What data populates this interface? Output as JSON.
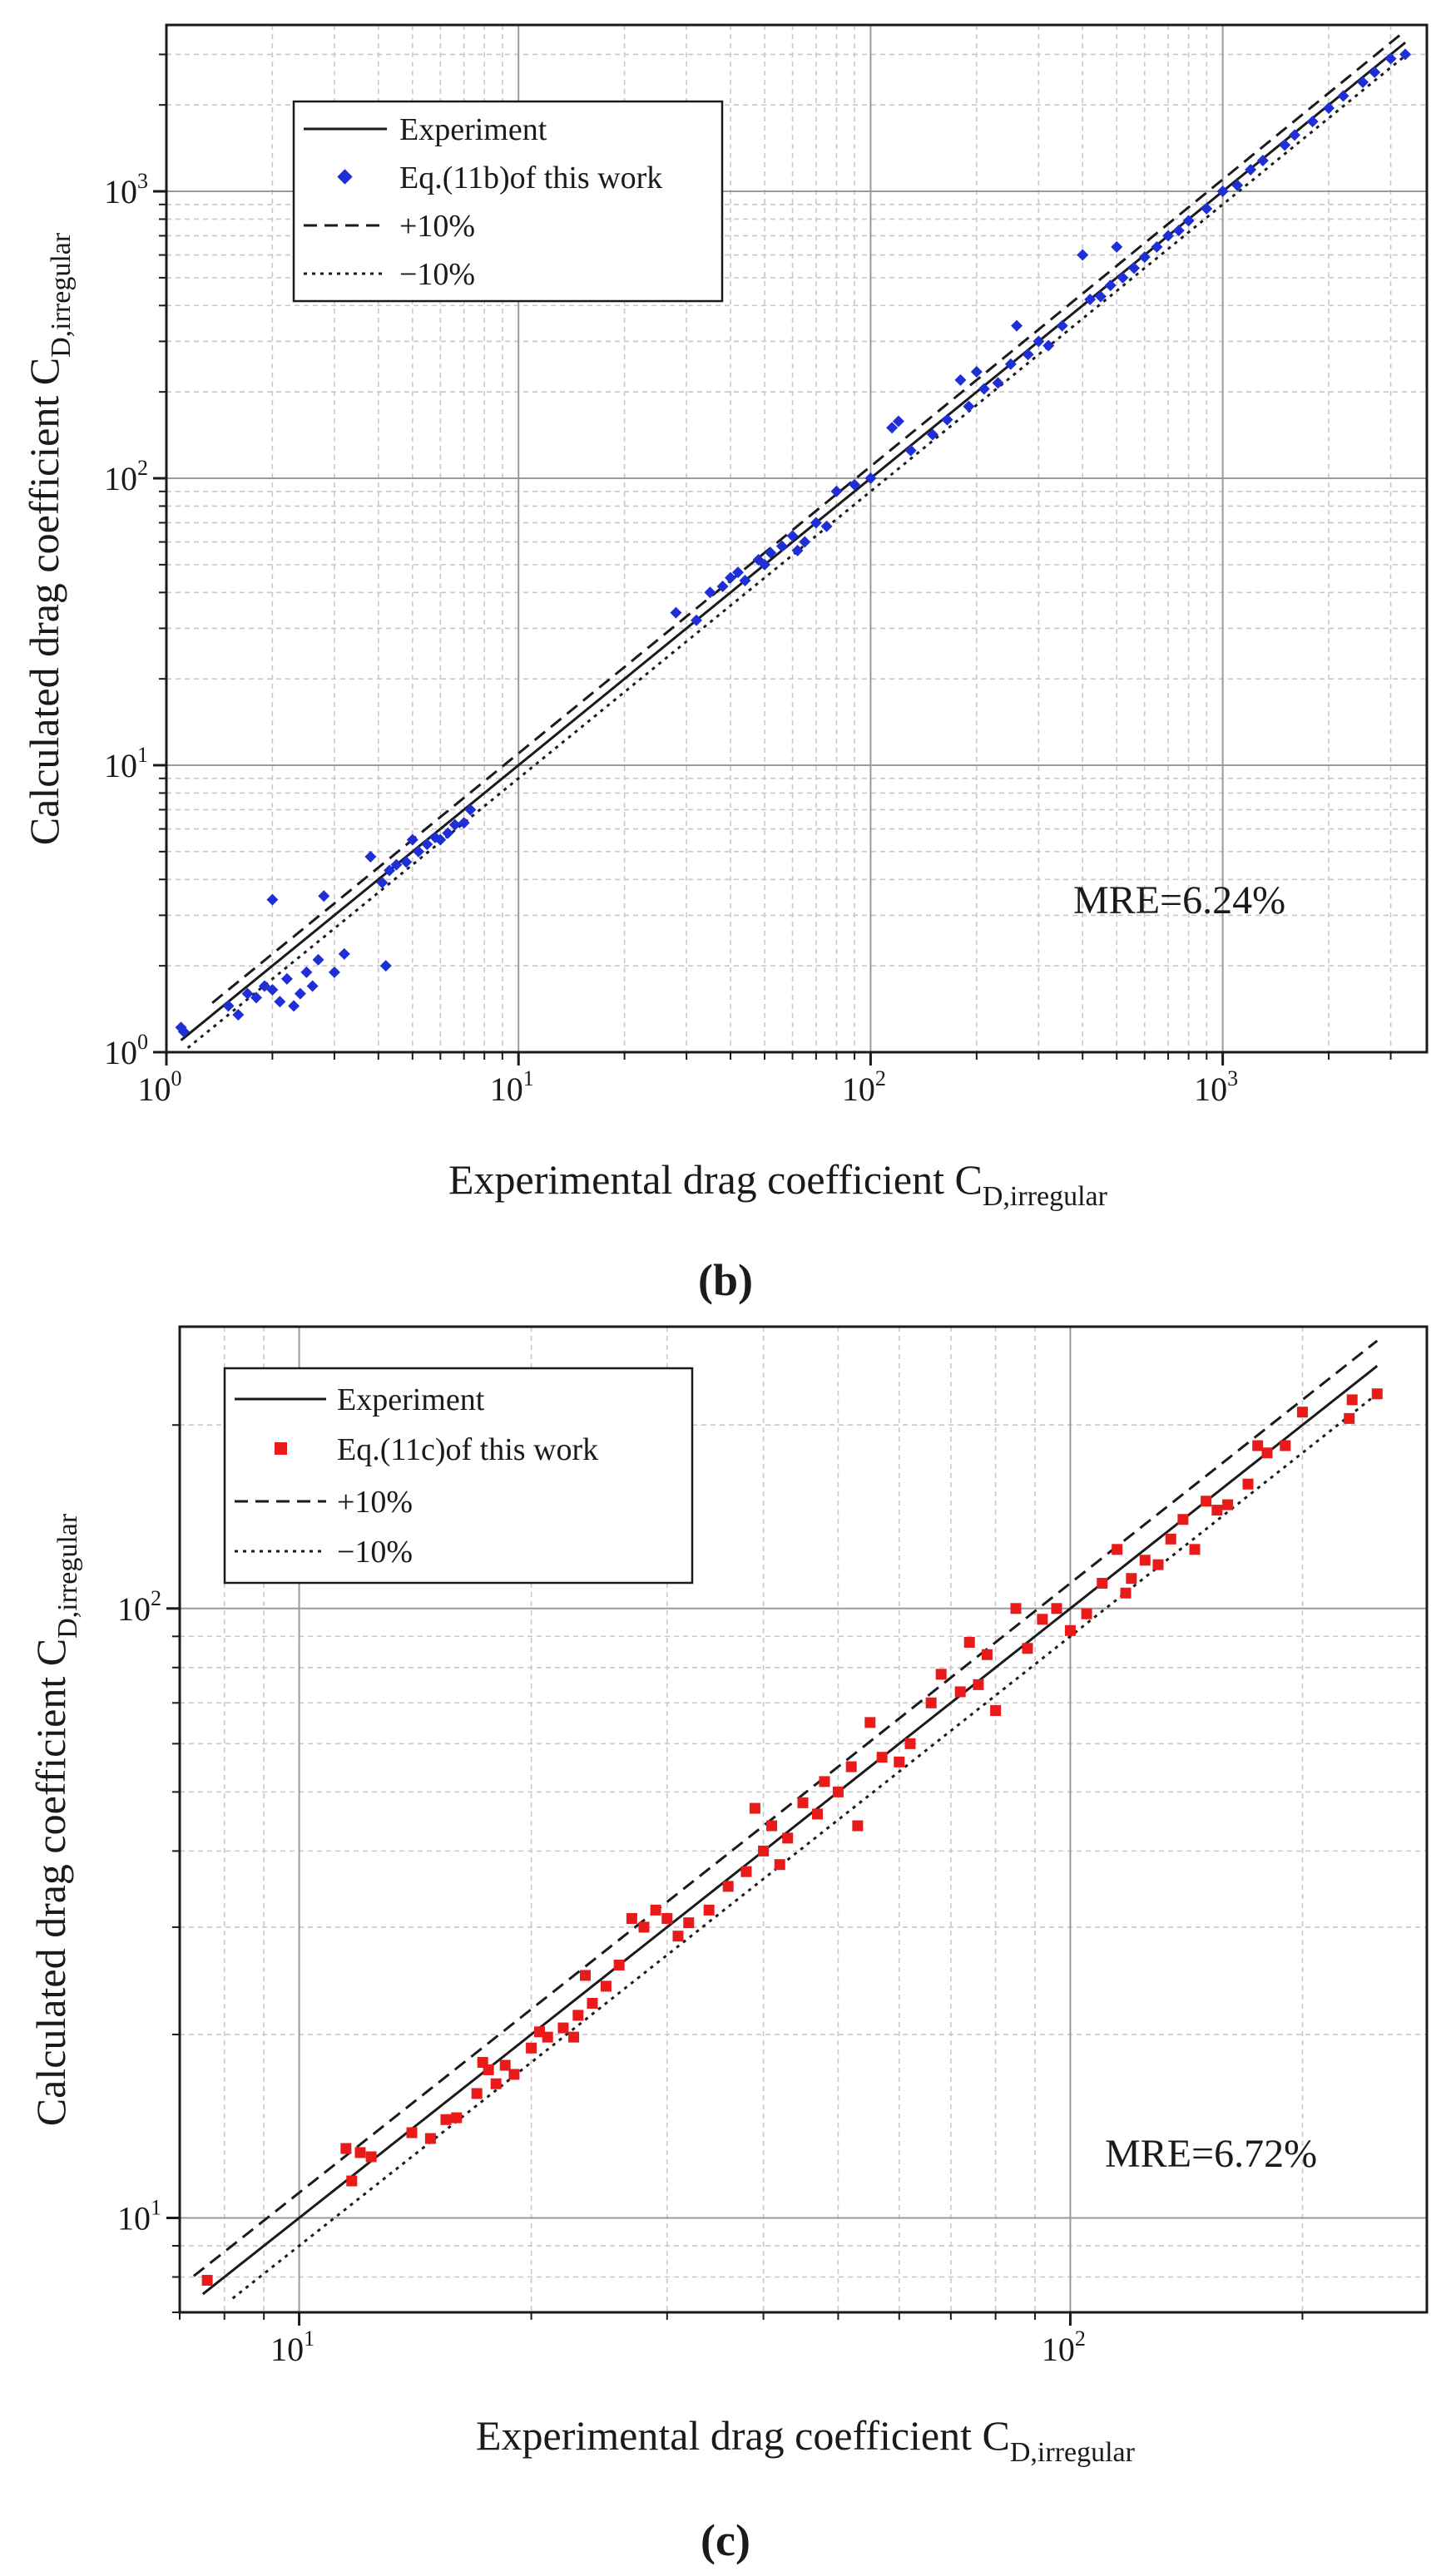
{
  "chart_data": [
    {
      "type": "scatter",
      "panel": "b",
      "caption": "(b)",
      "scale": "log-log",
      "xlabel": "Experimental drag coefficient C",
      "xlabel_sub": "D,irregular",
      "ylabel": "Calculated drag coefficient C",
      "ylabel_sub": "D,irregular",
      "xlim": [
        1,
        3800
      ],
      "ylim": [
        1,
        3800
      ],
      "x_ticks": [
        1,
        10,
        100,
        1000
      ],
      "y_ticks": [
        1,
        10,
        100,
        1000
      ],
      "tick_labels": [
        "10",
        "10",
        "10",
        "10"
      ],
      "tick_exponents": [
        "0",
        "1",
        "2",
        "3"
      ],
      "grid": true,
      "legend_position": "top-left",
      "annotation": "MRE=6.24%",
      "series": [
        {
          "name": "Experiment",
          "kind": "line",
          "style": "solid",
          "factor": 1.0,
          "range": [
            1.1,
            3300
          ]
        },
        {
          "name": "Eq.(11b)of this work",
          "kind": "scatter",
          "marker": "diamond",
          "color": "#1f2fd6",
          "points": [
            [
              1.1,
              1.22
            ],
            [
              1.12,
              1.18
            ],
            [
              1.5,
              1.45
            ],
            [
              1.6,
              1.35
            ],
            [
              1.7,
              1.6
            ],
            [
              1.8,
              1.55
            ],
            [
              1.9,
              1.7
            ],
            [
              2.0,
              1.65
            ],
            [
              2.0,
              3.4
            ],
            [
              2.1,
              1.5
            ],
            [
              2.2,
              1.8
            ],
            [
              2.3,
              1.45
            ],
            [
              2.4,
              1.6
            ],
            [
              2.5,
              1.9
            ],
            [
              2.6,
              1.7
            ],
            [
              2.7,
              2.1
            ],
            [
              2.8,
              3.5
            ],
            [
              3.0,
              1.9
            ],
            [
              3.2,
              2.2
            ],
            [
              3.8,
              4.8
            ],
            [
              4.1,
              3.9
            ],
            [
              4.2,
              2.0
            ],
            [
              4.3,
              4.3
            ],
            [
              4.5,
              4.5
            ],
            [
              4.8,
              4.6
            ],
            [
              5.0,
              5.5
            ],
            [
              5.2,
              5.0
            ],
            [
              5.5,
              5.3
            ],
            [
              5.8,
              5.6
            ],
            [
              6.0,
              5.5
            ],
            [
              6.3,
              5.8
            ],
            [
              6.6,
              6.2
            ],
            [
              7.0,
              6.3
            ],
            [
              7.3,
              7.0
            ],
            [
              28,
              34
            ],
            [
              32,
              32
            ],
            [
              35,
              40
            ],
            [
              38,
              42
            ],
            [
              40,
              45
            ],
            [
              42,
              47
            ],
            [
              44,
              44
            ],
            [
              48,
              52
            ],
            [
              50,
              50
            ],
            [
              52,
              55
            ],
            [
              56,
              58
            ],
            [
              60,
              63
            ],
            [
              62,
              56
            ],
            [
              65,
              60
            ],
            [
              70,
              70
            ],
            [
              75,
              68
            ],
            [
              80,
              90
            ],
            [
              90,
              95
            ],
            [
              100,
              100
            ],
            [
              115,
              150
            ],
            [
              120,
              158
            ],
            [
              130,
              125
            ],
            [
              150,
              142
            ],
            [
              165,
              160
            ],
            [
              180,
              220
            ],
            [
              190,
              178
            ],
            [
              200,
              235
            ],
            [
              210,
              205
            ],
            [
              230,
              215
            ],
            [
              250,
              250
            ],
            [
              260,
              340
            ],
            [
              280,
              270
            ],
            [
              300,
              300
            ],
            [
              320,
              290
            ],
            [
              350,
              340
            ],
            [
              400,
              600
            ],
            [
              420,
              420
            ],
            [
              450,
              430
            ],
            [
              480,
              470
            ],
            [
              500,
              640
            ],
            [
              520,
              500
            ],
            [
              560,
              540
            ],
            [
              600,
              590
            ],
            [
              650,
              640
            ],
            [
              700,
              700
            ],
            [
              750,
              730
            ],
            [
              800,
              790
            ],
            [
              900,
              870
            ],
            [
              1000,
              1000
            ],
            [
              1100,
              1050
            ],
            [
              1200,
              1190
            ],
            [
              1300,
              1280
            ],
            [
              1500,
              1450
            ],
            [
              1600,
              1570
            ],
            [
              1800,
              1750
            ],
            [
              2000,
              1950
            ],
            [
              2200,
              2150
            ],
            [
              2500,
              2400
            ],
            [
              2700,
              2600
            ],
            [
              3000,
              2900
            ],
            [
              3300,
              3000
            ]
          ]
        },
        {
          "name": "+10%",
          "kind": "line",
          "style": "dashed",
          "factor": 1.1,
          "range": [
            1.35,
            3300
          ]
        },
        {
          "name": "−10%",
          "kind": "line",
          "style": "dotted",
          "factor": 0.9,
          "range": [
            1.15,
            3300
          ]
        }
      ]
    },
    {
      "type": "scatter",
      "panel": "c",
      "caption": "(c)",
      "scale": "log-log",
      "xlabel": "Experimental drag coefficient C",
      "xlabel_sub": "D,irregular",
      "ylabel": "Calculated drag coefficient C",
      "ylabel_sub": "D,irregular",
      "xlim": [
        7,
        290
      ],
      "ylim": [
        7,
        290
      ],
      "x_ticks": [
        10,
        100
      ],
      "y_ticks": [
        10,
        100
      ],
      "tick_labels": [
        "10",
        "10"
      ],
      "tick_exponents": [
        "1",
        "2"
      ],
      "grid": true,
      "legend_position": "top-left",
      "annotation": "MRE=6.72%",
      "series": [
        {
          "name": "Experiment",
          "kind": "line",
          "style": "solid",
          "factor": 1.0,
          "range": [
            7.5,
            250
          ]
        },
        {
          "name": "Eq.(11c)of this work",
          "kind": "scatter",
          "marker": "square",
          "color": "#e81a1a",
          "points": [
            [
              7.6,
              7.9
            ],
            [
              11.5,
              13
            ],
            [
              11.7,
              11.5
            ],
            [
              12,
              12.8
            ],
            [
              12.4,
              12.6
            ],
            [
              14,
              13.8
            ],
            [
              14.8,
              13.5
            ],
            [
              15.5,
              14.5
            ],
            [
              16,
              14.6
            ],
            [
              17,
              16
            ],
            [
              17.3,
              18
            ],
            [
              17.6,
              17.5
            ],
            [
              18,
              16.6
            ],
            [
              18.5,
              17.8
            ],
            [
              19,
              17.2
            ],
            [
              20,
              19
            ],
            [
              20.5,
              20.2
            ],
            [
              21,
              19.8
            ],
            [
              22,
              20.5
            ],
            [
              22.7,
              19.8
            ],
            [
              23,
              21.5
            ],
            [
              23.5,
              25
            ],
            [
              24,
              22.5
            ],
            [
              25,
              24
            ],
            [
              26,
              26
            ],
            [
              27,
              31
            ],
            [
              28,
              30
            ],
            [
              29,
              32
            ],
            [
              30,
              31
            ],
            [
              31,
              29
            ],
            [
              32,
              30.5
            ],
            [
              34,
              32
            ],
            [
              36,
              35
            ],
            [
              38,
              37
            ],
            [
              39,
              47
            ],
            [
              40,
              40
            ],
            [
              41,
              44
            ],
            [
              42,
              38
            ],
            [
              43,
              42
            ],
            [
              45,
              48
            ],
            [
              47,
              46
            ],
            [
              48,
              52
            ],
            [
              50,
              50
            ],
            [
              52,
              55
            ],
            [
              53,
              44
            ],
            [
              55,
              65
            ],
            [
              57,
              57
            ],
            [
              60,
              56
            ],
            [
              62,
              60
            ],
            [
              66,
              70
            ],
            [
              68,
              78
            ],
            [
              72,
              73
            ],
            [
              74,
              88
            ],
            [
              76,
              75
            ],
            [
              78,
              84
            ],
            [
              80,
              68
            ],
            [
              85,
              100
            ],
            [
              88,
              86
            ],
            [
              92,
              96
            ],
            [
              96,
              100
            ],
            [
              100,
              92
            ],
            [
              105,
              98
            ],
            [
              110,
              110
            ],
            [
              115,
              125
            ],
            [
              118,
              106
            ],
            [
              120,
              112
            ],
            [
              125,
              120
            ],
            [
              130,
              118
            ],
            [
              135,
              130
            ],
            [
              140,
              140
            ],
            [
              145,
              125
            ],
            [
              150,
              150
            ],
            [
              155,
              145
            ],
            [
              160,
              148
            ],
            [
              170,
              160
            ],
            [
              175,
              185
            ],
            [
              180,
              180
            ],
            [
              190,
              185
            ],
            [
              200,
              210
            ],
            [
              230,
              205
            ],
            [
              232,
              220
            ],
            [
              250,
              225
            ]
          ]
        },
        {
          "name": "+10%",
          "kind": "line",
          "style": "dashed",
          "factor": 1.1,
          "range": [
            7.3,
            250
          ]
        },
        {
          "name": "−10%",
          "kind": "line",
          "style": "dotted",
          "factor": 0.9,
          "range": [
            8.2,
            250
          ]
        }
      ]
    }
  ]
}
